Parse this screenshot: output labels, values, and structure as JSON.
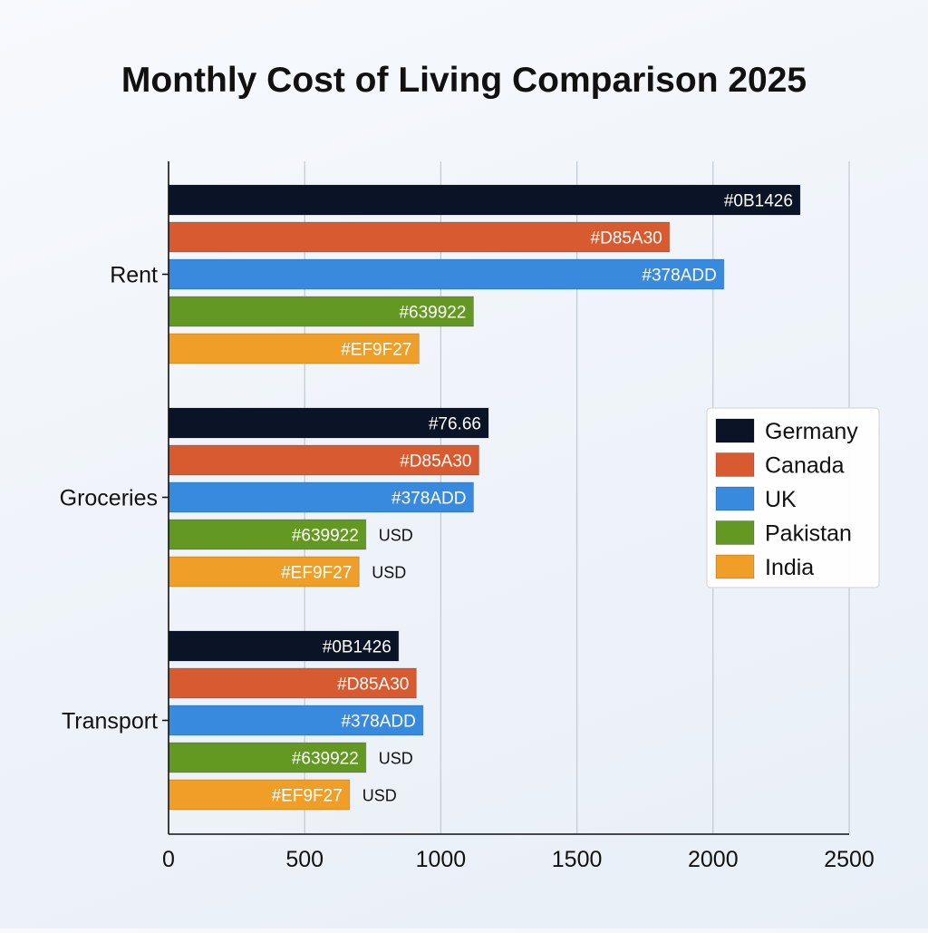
{
  "chart_data": {
    "type": "bar",
    "orientation": "horizontal",
    "title": "Monthly Cost of Living Comparison 2025",
    "xlabel": "",
    "ylabel": "",
    "categories": [
      "Rent",
      "Groceries",
      "Transport"
    ],
    "xlim": [
      0,
      2500
    ],
    "xticks": [
      "0",
      "500",
      "1000",
      "1500",
      "2000",
      "2500"
    ],
    "grid": "vertical",
    "legend_position": "right",
    "series": [
      {
        "name": "Germany",
        "color": "#0B1426",
        "values": [
          2320,
          1175,
          845
        ],
        "labels": [
          "#0B1426",
          "#76.66",
          "#0B1426"
        ],
        "suffixes": [
          "",
          "",
          ""
        ]
      },
      {
        "name": "Canada",
        "color": "#D85A30",
        "values": [
          1840,
          1140,
          910
        ],
        "labels": [
          "#D85A30",
          "#D85A30",
          "#D85A30"
        ],
        "suffixes": [
          "",
          "",
          ""
        ]
      },
      {
        "name": "UK",
        "color": "#378ADD",
        "values": [
          2040,
          1120,
          935
        ],
        "labels": [
          "#378ADD",
          "#378ADD",
          "#378ADD"
        ],
        "suffixes": [
          "",
          "",
          ""
        ]
      },
      {
        "name": "Pakistan",
        "color": "#639922",
        "values": [
          1120,
          725,
          725
        ],
        "labels": [
          "#639922",
          "#639922",
          "#639922"
        ],
        "suffixes": [
          "",
          "USD",
          "USD"
        ]
      },
      {
        "name": "India",
        "color": "#EF9F27",
        "values": [
          920,
          700,
          665
        ],
        "labels": [
          "#EF9F27",
          "#EF9F27",
          "#EF9F27"
        ],
        "suffixes": [
          "",
          "USD",
          "USD"
        ]
      }
    ]
  }
}
